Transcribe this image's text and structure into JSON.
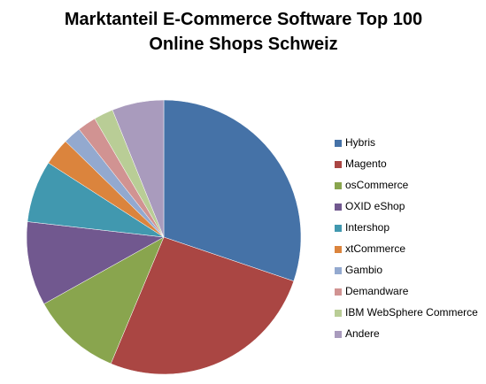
{
  "chart_data": {
    "type": "pie",
    "title": "Marktanteil E-Commerce Software Top 100 Online Shops Schweiz",
    "categories": [
      "Hybris",
      "Magento",
      "osCommerce",
      "OXID eShop",
      "Intershop",
      "xtCommerce",
      "Gambio",
      "Demandware",
      "IBM WebSphere Commerce",
      "Andere"
    ],
    "values": [
      30.2,
      26.1,
      10.6,
      9.9,
      7.3,
      3.2,
      2.1,
      2.2,
      2.3,
      6.1
    ],
    "colors": [
      "#4572A7",
      "#AA4643",
      "#89A54E",
      "#71588F",
      "#4198AF",
      "#DB843D",
      "#93A9CF",
      "#D19392",
      "#B9CD96",
      "#A99BBD"
    ],
    "legend": "right"
  }
}
